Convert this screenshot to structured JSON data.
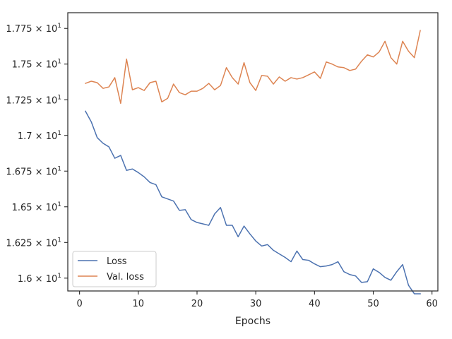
{
  "chart_data": {
    "type": "line",
    "title": "",
    "xlabel": "Epochs",
    "ylabel": "",
    "xlim": [
      -2,
      61
    ],
    "ylim": [
      15.91,
      17.86
    ],
    "grid": false,
    "legend_position": "lower-left",
    "x_ticks": [
      {
        "value": 0,
        "label": "0"
      },
      {
        "value": 10,
        "label": "10"
      },
      {
        "value": 20,
        "label": "20"
      },
      {
        "value": 30,
        "label": "30"
      },
      {
        "value": 40,
        "label": "40"
      },
      {
        "value": 50,
        "label": "50"
      },
      {
        "value": 60,
        "label": "60"
      }
    ],
    "y_ticks": [
      {
        "value": 16.0,
        "mantissa": "1.6",
        "exponent": "1"
      },
      {
        "value": 16.25,
        "mantissa": "1.625",
        "exponent": "1"
      },
      {
        "value": 16.5,
        "mantissa": "1.65",
        "exponent": "1"
      },
      {
        "value": 16.75,
        "mantissa": "1.675",
        "exponent": "1"
      },
      {
        "value": 17.0,
        "mantissa": "1.7",
        "exponent": "1"
      },
      {
        "value": 17.25,
        "mantissa": "1.725",
        "exponent": "1"
      },
      {
        "value": 17.5,
        "mantissa": "1.75",
        "exponent": "1"
      },
      {
        "value": 17.75,
        "mantissa": "1.775",
        "exponent": "1"
      }
    ],
    "times_symbol": "×",
    "exponent_base": "10",
    "x": [
      1,
      2,
      3,
      4,
      5,
      6,
      7,
      8,
      9,
      10,
      11,
      12,
      13,
      14,
      15,
      16,
      17,
      18,
      19,
      20,
      21,
      22,
      23,
      24,
      25,
      26,
      27,
      28,
      29,
      30,
      31,
      32,
      33,
      34,
      35,
      36,
      37,
      38,
      39,
      40,
      41,
      42,
      43,
      44,
      45,
      46,
      47,
      48,
      49,
      50,
      51,
      52,
      53,
      54,
      55,
      56,
      57,
      58
    ],
    "series": [
      {
        "name": "Loss",
        "color": "#4c72b0",
        "values": [
          17.17,
          17.095,
          16.985,
          16.945,
          16.92,
          16.84,
          16.86,
          16.755,
          16.765,
          16.74,
          16.71,
          16.67,
          16.655,
          16.57,
          16.555,
          16.54,
          16.475,
          16.48,
          16.41,
          16.39,
          16.38,
          16.37,
          16.45,
          16.495,
          16.37,
          16.37,
          16.29,
          16.365,
          16.31,
          16.26,
          16.225,
          16.235,
          16.195,
          16.17,
          16.145,
          16.115,
          16.19,
          16.13,
          16.125,
          16.1,
          16.08,
          16.085,
          16.095,
          16.115,
          16.045,
          16.025,
          16.015,
          15.97,
          15.975,
          16.065,
          16.04,
          16.005,
          15.985,
          16.045,
          16.095,
          15.95,
          15.89,
          15.89
        ]
      },
      {
        "name": "Val. loss",
        "color": "#dd8452",
        "values": [
          17.365,
          17.38,
          17.37,
          17.33,
          17.34,
          17.405,
          17.225,
          17.535,
          17.32,
          17.335,
          17.315,
          17.37,
          17.38,
          17.235,
          17.26,
          17.36,
          17.3,
          17.285,
          17.31,
          17.31,
          17.33,
          17.365,
          17.32,
          17.35,
          17.475,
          17.405,
          17.36,
          17.51,
          17.37,
          17.315,
          17.42,
          17.415,
          17.36,
          17.41,
          17.38,
          17.405,
          17.395,
          17.405,
          17.425,
          17.445,
          17.4,
          17.515,
          17.5,
          17.48,
          17.475,
          17.455,
          17.465,
          17.52,
          17.565,
          17.55,
          17.585,
          17.66,
          17.545,
          17.5,
          17.66,
          17.59,
          17.545,
          17.735
        ]
      }
    ]
  }
}
